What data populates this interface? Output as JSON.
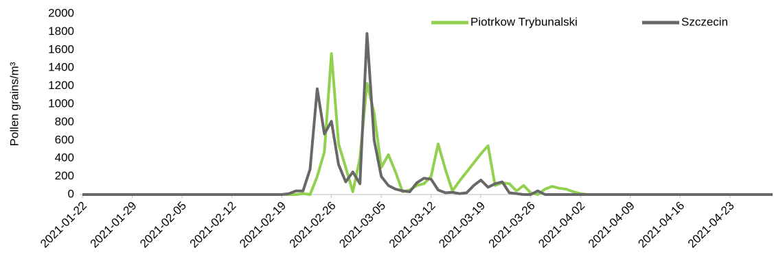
{
  "chart_data": {
    "type": "line",
    "ylabel": "Pollen grains/m³",
    "categories": [
      "2021-01-22",
      null,
      null,
      null,
      null,
      null,
      null,
      "2021-01-29",
      null,
      null,
      null,
      null,
      null,
      null,
      "2021-02-05",
      null,
      null,
      null,
      null,
      null,
      null,
      "2021-02-12",
      null,
      null,
      null,
      null,
      null,
      null,
      "2021-02-19",
      null,
      null,
      null,
      null,
      null,
      null,
      "2021-02-26",
      null,
      null,
      null,
      null,
      null,
      null,
      "2021-03-05",
      null,
      null,
      null,
      null,
      null,
      null,
      "2021-03-12",
      null,
      null,
      null,
      null,
      null,
      null,
      "2021-03-19",
      null,
      null,
      null,
      null,
      null,
      null,
      "2021-03-26",
      null,
      null,
      null,
      null,
      null,
      null,
      "2021-04-02",
      null,
      null,
      null,
      null,
      null,
      null,
      "2021-04-09",
      null,
      null,
      null,
      null,
      null,
      null,
      "2021-04-16",
      null,
      null,
      null,
      null,
      null,
      null,
      "2021-04-23",
      null,
      null,
      null,
      null,
      null,
      null
    ],
    "series": [
      {
        "name": "Piotrkow Trybunalski",
        "color": "#92d050",
        "values": [
          0,
          0,
          0,
          0,
          0,
          0,
          0,
          0,
          0,
          0,
          0,
          0,
          0,
          0,
          0,
          0,
          0,
          0,
          0,
          0,
          0,
          0,
          0,
          0,
          0,
          0,
          0,
          0,
          0,
          0,
          0,
          10,
          0,
          200,
          470,
          1560,
          560,
          300,
          30,
          400,
          1230,
          900,
          300,
          440,
          250,
          30,
          50,
          100,
          120,
          200,
          560,
          280,
          40,
          150,
          250,
          350,
          450,
          540,
          100,
          130,
          120,
          40,
          100,
          20,
          0,
          60,
          90,
          70,
          60,
          30,
          10,
          0,
          0,
          0,
          0,
          0,
          0,
          0,
          0,
          0,
          0,
          0,
          0,
          0,
          0,
          0,
          0,
          0,
          0,
          0,
          0,
          0,
          0,
          0,
          0,
          0,
          0,
          0
        ]
      },
      {
        "name": "Szczecin",
        "color": "#686868",
        "values": [
          0,
          0,
          0,
          0,
          0,
          0,
          0,
          0,
          0,
          0,
          0,
          0,
          0,
          0,
          0,
          0,
          0,
          0,
          0,
          0,
          0,
          0,
          0,
          0,
          0,
          0,
          0,
          0,
          0,
          10,
          40,
          40,
          280,
          1170,
          670,
          810,
          330,
          140,
          250,
          120,
          1780,
          600,
          200,
          100,
          60,
          40,
          30,
          130,
          180,
          170,
          50,
          20,
          25,
          10,
          20,
          100,
          160,
          80,
          120,
          140,
          20,
          10,
          0,
          0,
          40,
          0,
          0,
          0,
          0,
          0,
          0,
          0,
          0,
          0,
          0,
          0,
          0,
          0,
          0,
          0,
          0,
          0,
          0,
          0,
          0,
          0,
          0,
          0,
          0,
          0,
          0,
          0,
          0,
          0,
          0,
          0,
          0,
          0
        ]
      }
    ],
    "ylim": [
      0,
      2000
    ],
    "yticks": [
      0,
      200,
      400,
      600,
      800,
      1000,
      1200,
      1400,
      1600,
      1800,
      2000
    ],
    "grid": false,
    "legend": "upper right"
  }
}
